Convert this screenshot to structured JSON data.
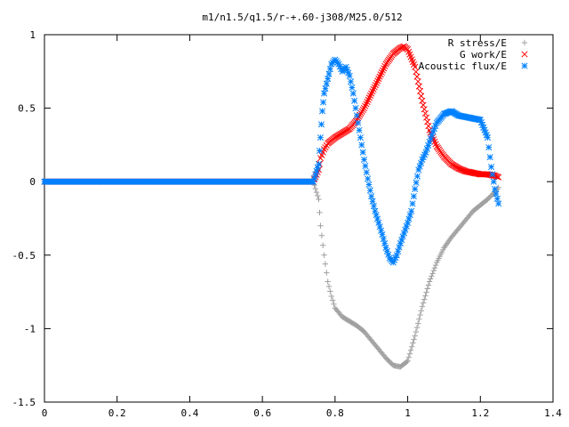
{
  "chart_data": {
    "type": "scatter",
    "title": "m1/n1.5/q1.5/r-+.60-j308/M25.0/512",
    "xlabel": "",
    "ylabel": "",
    "xlim": [
      0,
      1.4
    ],
    "ylim": [
      -1.5,
      1
    ],
    "grid": false,
    "legend_position": "top-right",
    "x_ticks": [
      "0",
      "0.2",
      "0.4",
      "0.6",
      "0.8",
      "1",
      "1.2",
      "1.4"
    ],
    "y_ticks": [
      "1",
      "0.5",
      "0",
      "-0.5",
      "-1",
      "-1.5"
    ],
    "series": [
      {
        "name": "R stress/E",
        "marker": "plus",
        "color": "#a0a0a0",
        "x": [
          0.0,
          0.1,
          0.2,
          0.3,
          0.4,
          0.5,
          0.6,
          0.7,
          0.74,
          0.755,
          0.76,
          0.77,
          0.78,
          0.79,
          0.8,
          0.82,
          0.84,
          0.86,
          0.88,
          0.9,
          0.92,
          0.94,
          0.96,
          0.98,
          1.0,
          1.02,
          1.04,
          1.06,
          1.08,
          1.1,
          1.12,
          1.14,
          1.16,
          1.18,
          1.2,
          1.22,
          1.24,
          1.25
        ],
        "y": [
          0,
          0,
          0,
          0,
          0,
          0,
          0,
          0,
          0,
          -0.12,
          -0.3,
          -0.5,
          -0.68,
          -0.78,
          -0.86,
          -0.92,
          -0.95,
          -0.98,
          -1.02,
          -1.08,
          -1.14,
          -1.2,
          -1.25,
          -1.26,
          -1.22,
          -1.05,
          -0.85,
          -0.68,
          -0.55,
          -0.45,
          -0.38,
          -0.32,
          -0.26,
          -0.2,
          -0.16,
          -0.12,
          -0.07,
          -0.04
        ]
      },
      {
        "name": "G work/E",
        "marker": "cross",
        "color": "#ff0000",
        "x": [
          0.0,
          0.1,
          0.2,
          0.3,
          0.4,
          0.5,
          0.6,
          0.7,
          0.74,
          0.755,
          0.76,
          0.77,
          0.78,
          0.8,
          0.82,
          0.84,
          0.86,
          0.88,
          0.9,
          0.92,
          0.94,
          0.96,
          0.98,
          0.99,
          1.0,
          1.02,
          1.04,
          1.06,
          1.08,
          1.1,
          1.12,
          1.14,
          1.16,
          1.18,
          1.2,
          1.22,
          1.24,
          1.25
        ],
        "y": [
          0,
          0,
          0,
          0,
          0,
          0,
          0,
          0,
          0,
          0.08,
          0.16,
          0.22,
          0.26,
          0.3,
          0.33,
          0.36,
          0.42,
          0.5,
          0.6,
          0.7,
          0.8,
          0.87,
          0.91,
          0.92,
          0.9,
          0.78,
          0.55,
          0.35,
          0.24,
          0.17,
          0.12,
          0.09,
          0.07,
          0.06,
          0.05,
          0.05,
          0.04,
          0.03
        ]
      },
      {
        "name": "Acoustic flux/E",
        "marker": "star",
        "color": "#0080ff",
        "x": [
          0.0,
          0.1,
          0.2,
          0.3,
          0.4,
          0.5,
          0.6,
          0.7,
          0.74,
          0.755,
          0.76,
          0.765,
          0.77,
          0.78,
          0.79,
          0.8,
          0.81,
          0.82,
          0.83,
          0.84,
          0.85,
          0.86,
          0.87,
          0.88,
          0.89,
          0.9,
          0.91,
          0.92,
          0.93,
          0.94,
          0.95,
          0.96,
          0.97,
          0.98,
          0.99,
          1.0,
          1.01,
          1.02,
          1.03,
          1.04,
          1.05,
          1.06,
          1.07,
          1.08,
          1.1,
          1.12,
          1.14,
          1.16,
          1.18,
          1.2,
          1.22,
          1.23,
          1.24,
          1.25
        ],
        "y": [
          0,
          0,
          0,
          0,
          0,
          0,
          0,
          0,
          0,
          0.12,
          0.3,
          0.48,
          0.6,
          0.7,
          0.8,
          0.83,
          0.8,
          0.75,
          0.78,
          0.72,
          0.6,
          0.45,
          0.3,
          0.15,
          0.02,
          -0.1,
          -0.2,
          -0.28,
          -0.36,
          -0.45,
          -0.52,
          -0.55,
          -0.5,
          -0.42,
          -0.35,
          -0.28,
          -0.2,
          -0.05,
          0.08,
          0.15,
          0.2,
          0.27,
          0.34,
          0.4,
          0.46,
          0.48,
          0.45,
          0.44,
          0.43,
          0.42,
          0.3,
          0.1,
          -0.05,
          -0.15
        ]
      }
    ]
  }
}
